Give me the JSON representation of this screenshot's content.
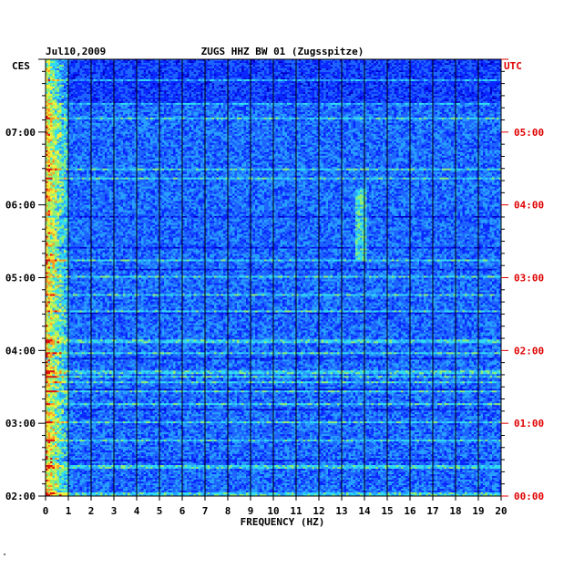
{
  "chart_data": {
    "type": "heatmap",
    "date": "Jul10,2009",
    "title": "ZUGS HHZ BW 01 (Zugsspitze)",
    "xlabel": "FREQUENCY (HZ)",
    "left_axis_tz": "CES",
    "right_axis_tz": "UTC",
    "xlim": [
      0,
      20
    ],
    "x_ticks": [
      "0",
      "1",
      "2",
      "3",
      "4",
      "5",
      "6",
      "7",
      "8",
      "9",
      "10",
      "11",
      "12",
      "13",
      "14",
      "15",
      "16",
      "17",
      "18",
      "19",
      "20"
    ],
    "time_range_utc_hours": [
      0,
      6
    ],
    "left_ticks": [
      {
        "label": "02:00",
        "utc_hours": 0
      },
      {
        "label": "03:00",
        "utc_hours": 1
      },
      {
        "label": "04:00",
        "utc_hours": 2
      },
      {
        "label": "05:00",
        "utc_hours": 3
      },
      {
        "label": "06:00",
        "utc_hours": 4
      },
      {
        "label": "07:00",
        "utc_hours": 5
      }
    ],
    "right_ticks": [
      {
        "label": "00:00",
        "utc_hours": 0
      },
      {
        "label": "01:00",
        "utc_hours": 1
      },
      {
        "label": "02:00",
        "utc_hours": 2
      },
      {
        "label": "03:00",
        "utc_hours": 3
      },
      {
        "label": "04:00",
        "utc_hours": 4
      },
      {
        "label": "05:00",
        "utc_hours": 5
      }
    ],
    "colormap": [
      "#000080",
      "#0000c8",
      "#0a28ff",
      "#1e64ff",
      "#28a0ff",
      "#32dcf0",
      "#8cf078",
      "#f0f03c",
      "#ff9620",
      "#e01010"
    ],
    "vertical_gridlines": true,
    "horizontal_minor_ticks_per_hour": 6
  },
  "corner_mark": "\""
}
